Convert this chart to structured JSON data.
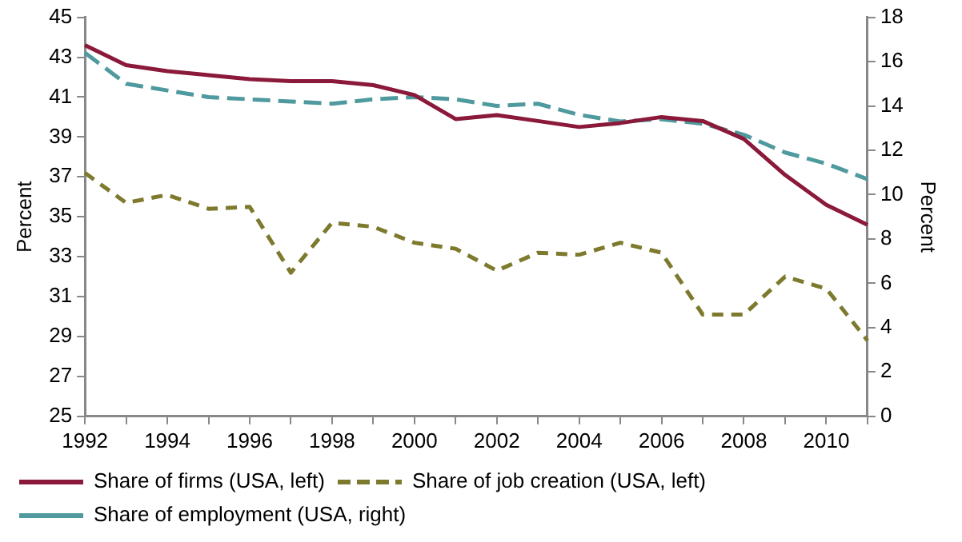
{
  "chart_data": {
    "type": "line",
    "ylabel": "Percent",
    "y2label": "Percent",
    "categories": [
      "1992",
      null,
      "1994",
      null,
      "1996",
      null,
      "1998",
      null,
      "2000",
      null,
      "2002",
      null,
      "2004",
      null,
      "2006",
      null,
      "2008",
      null,
      "2010",
      null
    ],
    "series": [
      {
        "name": "Share of firms (USA, left)",
        "color": "#8b1a3a",
        "line_style": "solid",
        "values": [
          43.6,
          42.6,
          42.3,
          42.1,
          41.9,
          41.8,
          41.8,
          41.6,
          41.1,
          39.9,
          40.1,
          39.8,
          39.5,
          39.7,
          40.0,
          39.8,
          38.9,
          37.1,
          35.6,
          34.6
        ]
      },
      {
        "name": "Share of job creation (USA, left)",
        "color": "#7d7a2e",
        "line_style": "dotted",
        "values": [
          37.2,
          35.7,
          36.1,
          35.4,
          35.5,
          32.2,
          34.7,
          34.5,
          33.7,
          33.4,
          32.3,
          33.2,
          33.1,
          33.7,
          33.2,
          30.1,
          30.1,
          32.0,
          31.4,
          28.8
        ]
      },
      {
        "name": "Share of employment (USA, right)",
        "color": "#4f9a9e",
        "line_style": "dashed",
        "axis": "y2",
        "values": [
          16.4,
          15.0,
          14.7,
          14.4,
          14.3,
          14.2,
          14.1,
          14.3,
          14.4,
          14.3,
          14.0,
          14.1,
          13.6,
          13.3,
          13.4,
          13.2,
          12.7,
          11.9,
          11.4,
          10.7
        ]
      }
    ],
    "ylim": [
      25,
      45
    ],
    "yticks": [
      25,
      27,
      29,
      31,
      33,
      35,
      37,
      39,
      41,
      43,
      45
    ],
    "y2lim": [
      0,
      18
    ],
    "y2ticks": [
      0,
      2,
      4,
      6,
      8,
      10,
      12,
      14,
      16,
      18
    ],
    "grid": false,
    "legend": "bottom",
    "marker": "none"
  }
}
